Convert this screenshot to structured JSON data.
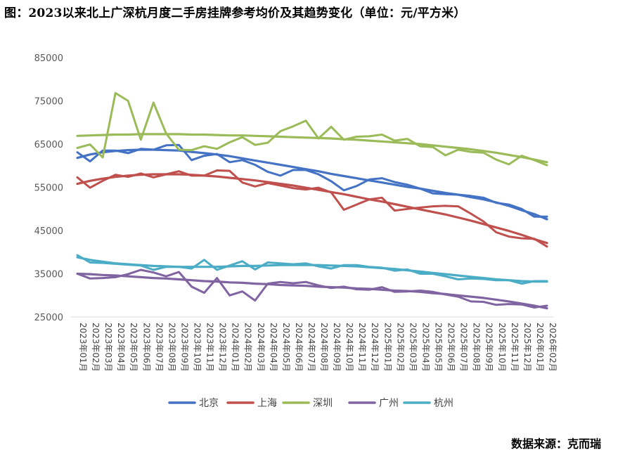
{
  "title": "图：2023以来北上广深杭月度二手房挂牌参考均价及其趋势变化（单位：元/平方米）",
  "source": "数据来源：克而瑞",
  "chart_data": {
    "type": "line",
    "ylim": [
      25000,
      85000
    ],
    "yticks": [
      25000,
      35000,
      45000,
      55000,
      65000,
      75000,
      85000
    ],
    "categories": [
      "2023年01月",
      "2023年02月",
      "2023年03月",
      "2023年04月",
      "2023年05月",
      "2023年06月",
      "2023年07月",
      "2023年08月",
      "2023年09月",
      "2023年10月",
      "2023年11月",
      "2023年12月",
      "2024年01月",
      "2024年02月",
      "2024年03月",
      "2024年04月",
      "2024年05月",
      "2024年06月",
      "2024年07月",
      "2024年08月",
      "2024年09月",
      "2024年10月",
      "2024年11月",
      "2024年12月",
      "2025年01月",
      "2025年02月",
      "2025年03月",
      "2025年04月",
      "2025年05月",
      "2025年06月",
      "2025年07月",
      "2025年08月",
      "2025年09月",
      "2025年10月",
      "2025年11月",
      "2025年12月",
      "2026年01月",
      "2026年02月"
    ],
    "series": [
      {
        "name": "北京",
        "color": "#4472C4",
        "values": [
          63100,
          61000,
          63500,
          63500,
          62900,
          63900,
          63700,
          64700,
          64800,
          61300,
          62300,
          62700,
          60800,
          61300,
          60200,
          58600,
          57700,
          59000,
          59000,
          58000,
          56400,
          54300,
          55300,
          56800,
          57100,
          56200,
          55600,
          54700,
          53600,
          53400,
          53300,
          53000,
          52600,
          51400,
          51000,
          50000,
          48200,
          48200
        ],
        "trend": [
          61800,
          62600,
          63100,
          63400,
          63600,
          63700,
          63700,
          63600,
          63500,
          63200,
          62900,
          62600,
          62200,
          61700,
          61200,
          60700,
          60200,
          59700,
          59200,
          58700,
          58100,
          57600,
          57100,
          56600,
          56100,
          55600,
          55100,
          54700,
          54200,
          53700,
          53300,
          52700,
          52200,
          51500,
          50700,
          49700,
          48800,
          47600
        ]
      },
      {
        "name": "上海",
        "color": "#C0504D",
        "values": [
          57300,
          54900,
          56500,
          57900,
          57400,
          58200,
          57300,
          58000,
          58700,
          57700,
          57700,
          58900,
          58800,
          56100,
          55200,
          56000,
          55400,
          54800,
          54500,
          54900,
          53800,
          49800,
          51000,
          52200,
          52600,
          49600,
          50000,
          50300,
          50600,
          50700,
          50600,
          48900,
          47100,
          44600,
          43600,
          43200,
          43100,
          41300
        ],
        "trend": [
          55800,
          56500,
          57000,
          57400,
          57700,
          57900,
          58000,
          58000,
          58000,
          57900,
          57700,
          57500,
          57200,
          56900,
          56600,
          56200,
          55800,
          55400,
          54900,
          54400,
          53900,
          53400,
          52800,
          52200,
          51700,
          51100,
          50500,
          49900,
          49300,
          48700,
          48000,
          47300,
          46500,
          45700,
          44900,
          44000,
          43000,
          42100
        ]
      },
      {
        "name": "深圳",
        "color": "#9BBB59",
        "values": [
          64100,
          64900,
          61900,
          76800,
          75000,
          66000,
          74600,
          67400,
          63700,
          63600,
          64500,
          63900,
          65400,
          66600,
          64800,
          65300,
          68000,
          69100,
          70400,
          66300,
          69000,
          66000,
          66700,
          66800,
          67200,
          65800,
          66200,
          64500,
          64300,
          62400,
          63700,
          63200,
          63000,
          61400,
          60300,
          62300,
          61300,
          60100
        ],
        "trend": [
          66900,
          67000,
          67100,
          67200,
          67200,
          67300,
          67300,
          67300,
          67300,
          67200,
          67200,
          67100,
          67000,
          67000,
          66900,
          66800,
          66700,
          66600,
          66500,
          66400,
          66300,
          66100,
          66000,
          65800,
          65600,
          65400,
          65200,
          65000,
          64700,
          64400,
          64100,
          63800,
          63400,
          63000,
          62500,
          62000,
          61400,
          60800
        ]
      },
      {
        "name": "广州",
        "color": "#8064A2",
        "values": [
          35000,
          33900,
          34000,
          34200,
          34900,
          35900,
          35300,
          34400,
          35400,
          32000,
          30600,
          34000,
          30000,
          30900,
          28800,
          32700,
          33100,
          32800,
          33100,
          32300,
          31700,
          32000,
          31400,
          31300,
          31900,
          30800,
          30900,
          31100,
          30800,
          30200,
          29700,
          28600,
          28500,
          27800,
          28000,
          27900,
          27200,
          27600
        ],
        "trend": [
          35000,
          34900,
          34700,
          34600,
          34400,
          34200,
          34000,
          33900,
          33700,
          33500,
          33300,
          33200,
          33000,
          32900,
          32700,
          32600,
          32400,
          32300,
          32200,
          32000,
          31900,
          31800,
          31600,
          31500,
          31300,
          31100,
          31000,
          30800,
          30500,
          30300,
          30000,
          29700,
          29400,
          29000,
          28600,
          28100,
          27600,
          27000
        ]
      },
      {
        "name": "杭州",
        "color": "#4BACC6",
        "values": [
          39300,
          37600,
          37500,
          37300,
          37100,
          36900,
          35900,
          36600,
          36600,
          36200,
          38200,
          35900,
          36900,
          37900,
          36000,
          37600,
          37400,
          37200,
          37400,
          36700,
          36200,
          37000,
          37000,
          36600,
          36400,
          35700,
          36000,
          35000,
          35000,
          34400,
          33700,
          33900,
          33800,
          33500,
          33500,
          32700,
          33300,
          33300
        ],
        "trend": [
          38800,
          38200,
          37800,
          37400,
          37200,
          37000,
          36800,
          36700,
          36600,
          36600,
          36600,
          36600,
          36700,
          36800,
          36800,
          36900,
          37000,
          37000,
          37000,
          37000,
          36900,
          36800,
          36700,
          36500,
          36300,
          36100,
          35800,
          35500,
          35200,
          34900,
          34600,
          34300,
          34000,
          33700,
          33500,
          33300,
          33200,
          33200
        ]
      }
    ]
  },
  "legend": [
    "北京",
    "上海",
    "深圳",
    "广州",
    "杭州"
  ]
}
